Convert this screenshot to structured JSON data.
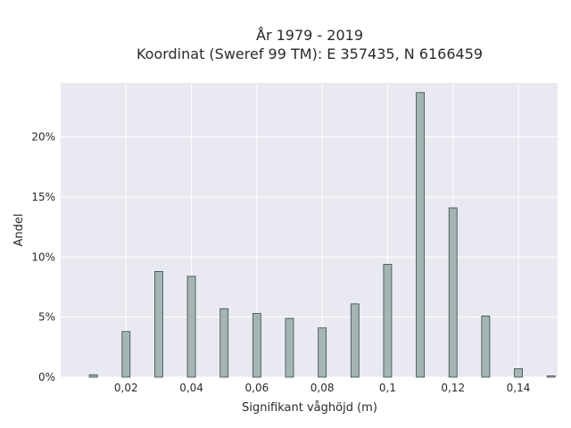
{
  "chart_data": {
    "type": "bar",
    "title_line1": "År 1979 - 2019",
    "title_line2": "Koordinat (Sweref 99 TM): E 357435, N 6166459",
    "xlabel": "Signifikant våghöjd (m)",
    "ylabel": "Andel",
    "xlim": [
      0.0,
      0.152
    ],
    "ylim": [
      0.0,
      0.245
    ],
    "x": [
      0.01,
      0.02,
      0.03,
      0.04,
      0.05,
      0.06,
      0.07,
      0.08,
      0.09,
      0.1,
      0.11,
      0.12,
      0.13,
      0.14,
      0.15
    ],
    "values": [
      0.002,
      0.038,
      0.088,
      0.084,
      0.057,
      0.053,
      0.049,
      0.041,
      0.061,
      0.094,
      0.237,
      0.141,
      0.051,
      0.007,
      0.001
    ],
    "x_ticks": [
      0.02,
      0.04,
      0.06,
      0.08,
      0.1,
      0.12,
      0.14
    ],
    "x_tick_labels": [
      "0,02",
      "0,04",
      "0,06",
      "0,08",
      "0,1",
      "0,12",
      "0,14"
    ],
    "y_ticks": [
      0,
      0.05,
      0.1,
      0.15,
      0.2
    ],
    "y_tick_labels": [
      "0%",
      "5%",
      "10%",
      "15%",
      "20%"
    ],
    "grid": true,
    "colors": {
      "plot_bg": "#e9e9f2",
      "bar_fill": "#a3b5b5",
      "bar_edge": "#3a4848",
      "grid": "#ffffff"
    }
  }
}
